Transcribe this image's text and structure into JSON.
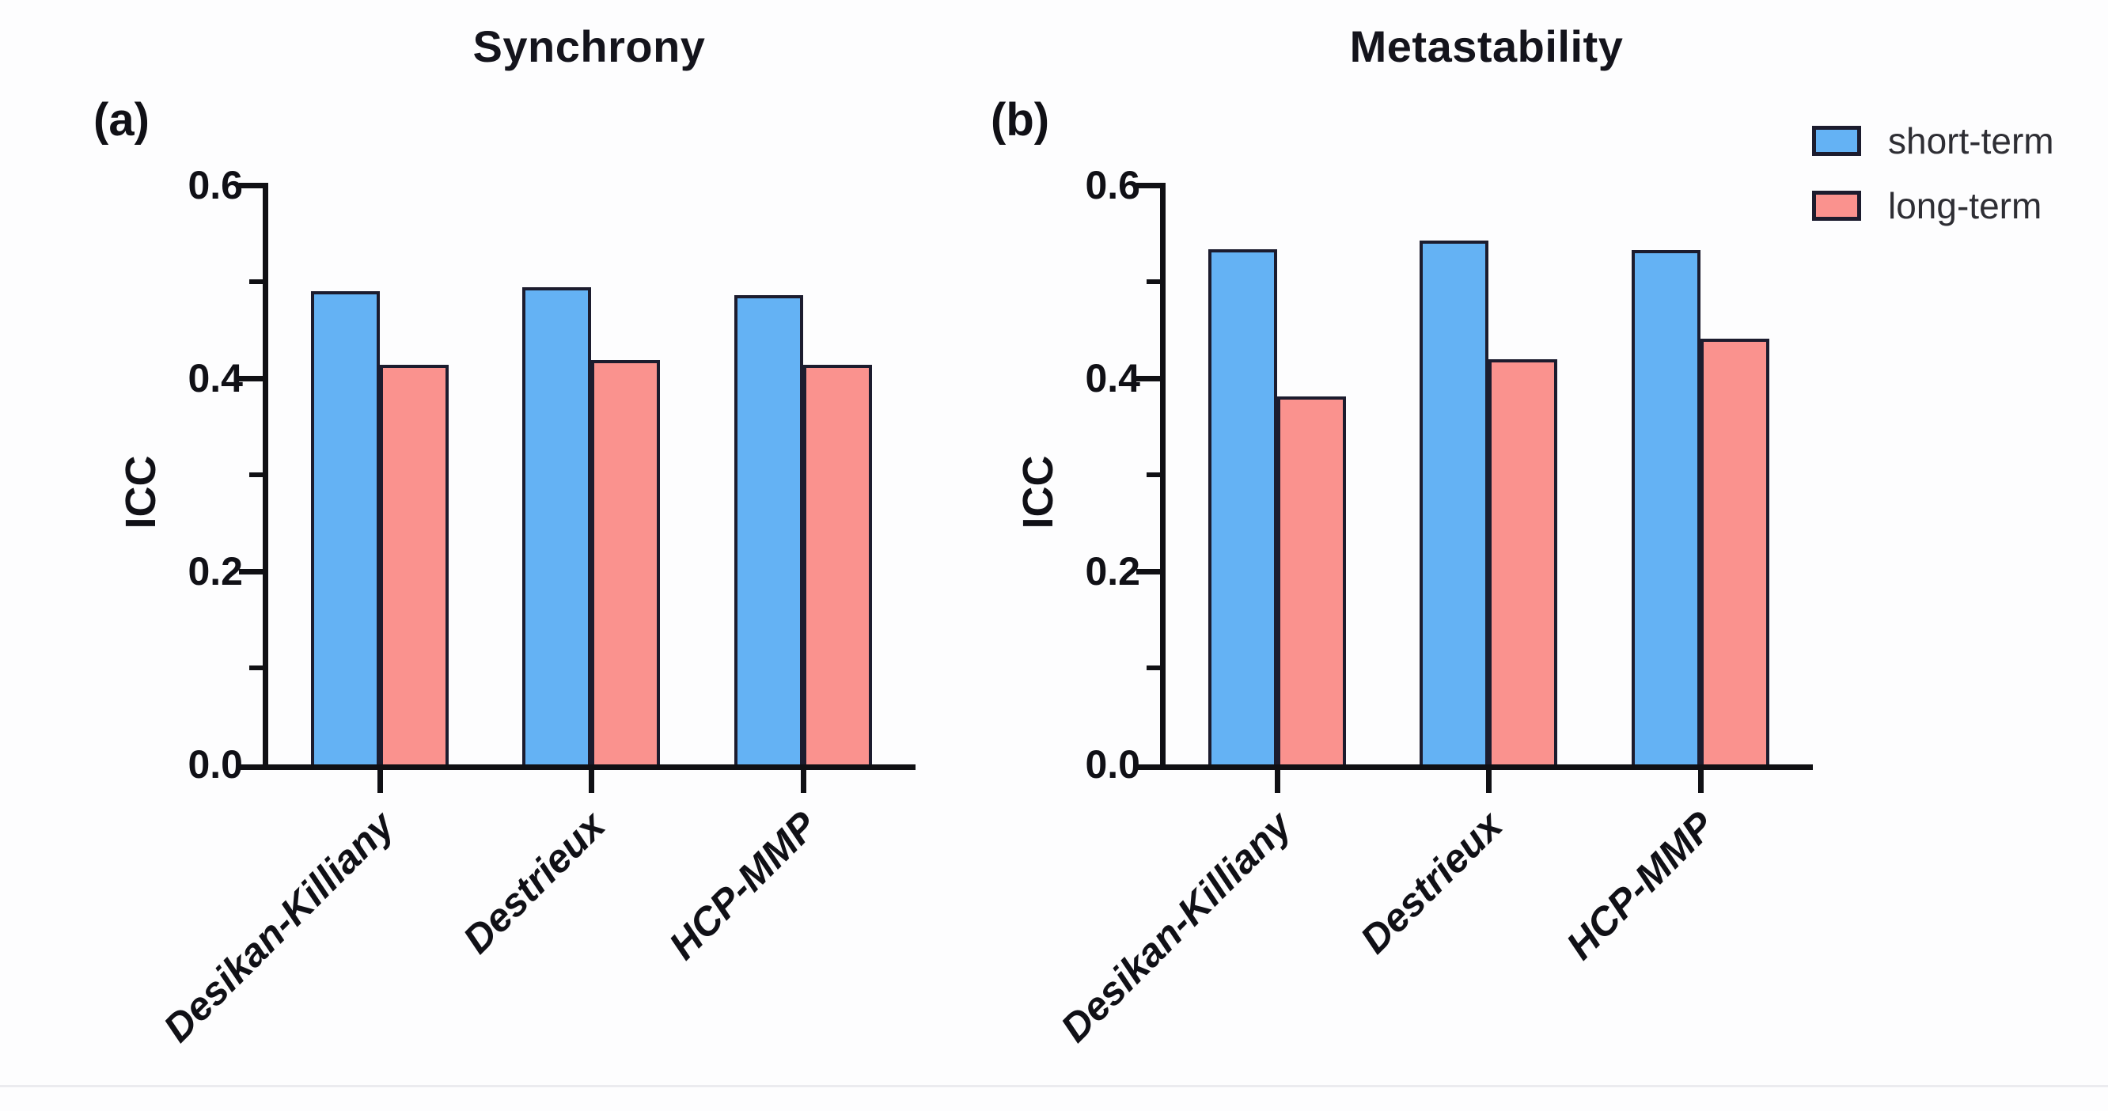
{
  "figure": {
    "ylabel": "ICC",
    "legend": {
      "items": [
        {
          "label": "short-term",
          "color": "#64B2F4"
        },
        {
          "label": "long-term",
          "color": "#FA928E"
        }
      ]
    },
    "colors": {
      "short_term": "#64B2F4",
      "long_term": "#FA928E",
      "bar_outline": "#1C1C2E",
      "axis": "#101014",
      "bottom_rule": "#EBEBEF"
    }
  },
  "chart_data": [
    {
      "type": "bar",
      "panel_label": "(a)",
      "title": "Synchrony",
      "ylabel": "ICC",
      "xlabel": "",
      "categories": [
        "Desikan-Killiany",
        "Destrieux",
        "HCP-MMP"
      ],
      "series": [
        {
          "name": "short-term",
          "color": "#64B2F4",
          "values": [
            0.49,
            0.494,
            0.486
          ]
        },
        {
          "name": "long-term",
          "color": "#FA928E",
          "values": [
            0.414,
            0.419,
            0.414
          ]
        }
      ],
      "ylim": [
        0.0,
        0.6
      ],
      "yticks_major": [
        0.0,
        0.2,
        0.4,
        0.6
      ],
      "ytick_labels": [
        "0.0",
        "0.2",
        "0.4",
        "0.6"
      ],
      "yticks_minor": [
        0.1,
        0.3,
        0.5
      ],
      "grid": false,
      "legend_position": "outside-top-right"
    },
    {
      "type": "bar",
      "panel_label": "(b)",
      "title": "Metastability",
      "ylabel": "ICC",
      "xlabel": "",
      "categories": [
        "Desikan-Killiany",
        "Destrieux",
        "HCP-MMP"
      ],
      "series": [
        {
          "name": "short-term",
          "color": "#64B2F4",
          "values": [
            0.534,
            0.543,
            0.533
          ]
        },
        {
          "name": "long-term",
          "color": "#FA928E",
          "values": [
            0.381,
            0.42,
            0.441
          ]
        }
      ],
      "ylim": [
        0.0,
        0.6
      ],
      "yticks_major": [
        0.0,
        0.2,
        0.4,
        0.6
      ],
      "ytick_labels": [
        "0.0",
        "0.2",
        "0.4",
        "0.6"
      ],
      "yticks_minor": [
        0.1,
        0.3,
        0.5
      ],
      "grid": false,
      "legend_position": "outside-top-right"
    }
  ]
}
